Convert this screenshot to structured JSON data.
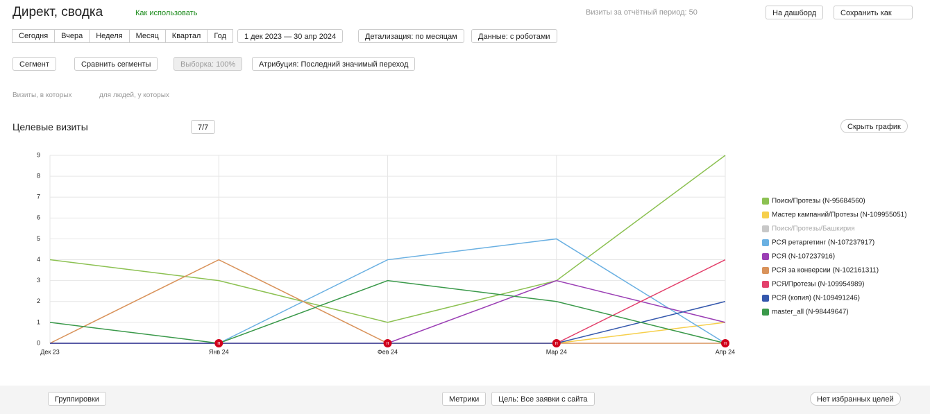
{
  "header": {
    "title": "Директ, сводка",
    "help": "Как использовать",
    "visits": "Визиты за отчётный период: 50",
    "dashboard": "На дашборд",
    "save": "Сохранить как"
  },
  "toolbar": {
    "periods": [
      "Сегодня",
      "Вчера",
      "Неделя",
      "Месяц",
      "Квартал",
      "Год"
    ],
    "dates": "1 дек 2023 — 30 апр 2024",
    "detail": "Детализация: по месяцам",
    "robots": "Данные: с роботами"
  },
  "segments": {
    "segment": "Сегмент",
    "compare": "Сравнить сегменты",
    "sample": "Выборка: 100%",
    "attribution": "Атрибуция: Последний значимый переход"
  },
  "filters": {
    "visits": "Визиты, в которых",
    "people": "для людей, у которых"
  },
  "chart_header": {
    "title": "Целевые визиты",
    "count": "7/7",
    "hide": "Скрыть график"
  },
  "footer": {
    "groupings": "Группировки",
    "metrics": "Метрики",
    "goal": "Цель: Все заявки с сайта",
    "favorites": "Нет избранных целей"
  },
  "chart_data": {
    "type": "line",
    "categories": [
      "Дек 23",
      "Янв 24",
      "Фев 24",
      "Мар 24",
      "Апр 24"
    ],
    "ylim": [
      0,
      9
    ],
    "yticks": [
      0,
      1,
      2,
      3,
      4,
      5,
      6,
      7,
      8,
      9
    ],
    "grid": true,
    "annotations": {
      "label": "н",
      "categories": [
        "Янв 24",
        "Фев 24",
        "Мар 24",
        "Апр 24"
      ]
    },
    "series": [
      {
        "name": "Поиск/Протезы (N-95684560)",
        "color": "#8cc152",
        "values": [
          4,
          3,
          1,
          3,
          9
        ]
      },
      {
        "name": "Мастер кампаний/Протезы (N-109955051)",
        "color": "#f6cf4b",
        "values": [
          0,
          0,
          0,
          0,
          1
        ]
      },
      {
        "name": "Поиск/Протезы/Башкирия",
        "color": "#c8c8c8",
        "hidden": true
      },
      {
        "name": "РСЯ ретаргетинг (N-107237917)",
        "color": "#6ab0e2",
        "values": [
          0,
          0,
          4,
          5,
          0
        ]
      },
      {
        "name": "РСЯ (N-107237916)",
        "color": "#9b3fb5",
        "values": [
          0,
          0,
          0,
          3,
          1
        ]
      },
      {
        "name": "РСЯ за конверсии (N-102161311)",
        "color": "#d9935b",
        "values": [
          0,
          4,
          0,
          0,
          0
        ]
      },
      {
        "name": "РСЯ/Протезы (N-109954989)",
        "color": "#e3406b",
        "values": [
          0,
          0,
          0,
          0,
          4
        ]
      },
      {
        "name": "РСЯ (копия) (N-109491246)",
        "color": "#3558ad",
        "values": [
          0,
          0,
          0,
          0,
          2
        ]
      },
      {
        "name": "master_all (N-98449647)",
        "color": "#3a994a",
        "values": [
          1,
          0,
          3,
          2,
          0
        ]
      }
    ]
  }
}
